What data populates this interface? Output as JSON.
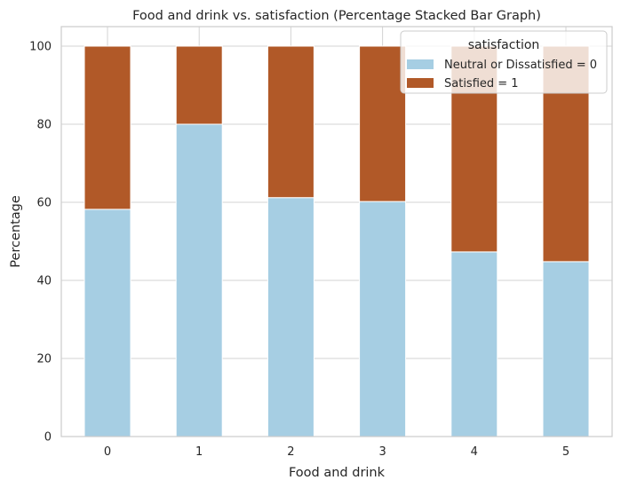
{
  "chart_data": {
    "type": "bar",
    "stacked": true,
    "title": "Food and drink vs. satisfaction (Percentage Stacked Bar Graph)",
    "xlabel": "Food and drink",
    "ylabel": "Percentage",
    "categories": [
      "0",
      "1",
      "2",
      "3",
      "4",
      "5"
    ],
    "ylim": [
      0,
      105
    ],
    "yticks": [
      0,
      20,
      40,
      60,
      80,
      100
    ],
    "grid": true,
    "legend": {
      "title": "satisfaction",
      "placement": "top-right"
    },
    "series": [
      {
        "name": "Neutral or Dissatisfied = 0",
        "color": "#a6cee3",
        "values": [
          58.2,
          80.0,
          61.2,
          60.2,
          47.3,
          44.8
        ]
      },
      {
        "name": "Satisfied = 1",
        "color": "#b15928",
        "values": [
          41.8,
          20.0,
          38.8,
          39.8,
          52.7,
          55.2
        ]
      }
    ]
  }
}
